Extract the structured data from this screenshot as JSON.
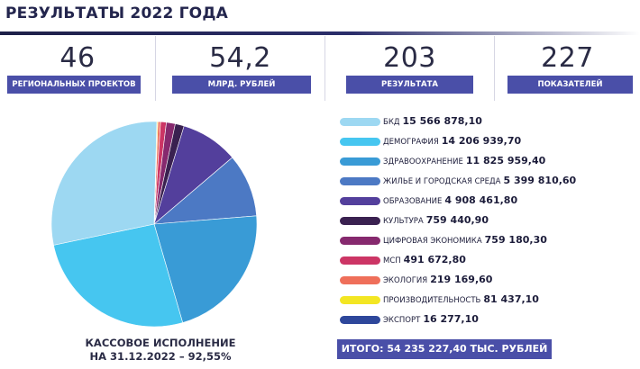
{
  "header": {
    "title": "РЕЗУЛЬТАТЫ 2022 ГОДА"
  },
  "stats": [
    {
      "value": "46",
      "label": "РЕГИОНАЛЬНЫХ ПРОЕКТОВ"
    },
    {
      "value": "54,2",
      "label": "МЛРД. РУБЛЕЙ"
    },
    {
      "value": "203",
      "label": "РЕЗУЛЬТАТА"
    },
    {
      "value": "227",
      "label": "ПОКАЗАТЕЛЕЙ"
    }
  ],
  "chart_data": {
    "type": "pie",
    "slices": [
      {
        "name": "БКД",
        "label": "15 566 878,10",
        "value": 15566878.1,
        "color": "#9dd8f2"
      },
      {
        "name": "ДЕМОГРАФИЯ",
        "label": "14 206 939,70",
        "value": 14206939.7,
        "color": "#46c6f0"
      },
      {
        "name": "ЗДРАВООХРАНЕНИЕ",
        "label": "11 825 959,40",
        "value": 11825959.4,
        "color": "#399bd6"
      },
      {
        "name": "ЖИЛЬЕ И ГОРОДСКАЯ СРЕДА",
        "label": "5 399 810,60",
        "value": 5399810.6,
        "color": "#4c79c4"
      },
      {
        "name": "ОБРАЗОВАНИЕ",
        "label": "4 908 461,80",
        "value": 4908461.8,
        "color": "#533f9c"
      },
      {
        "name": "КУЛЬТУРА",
        "label": "759 440,90",
        "value": 759440.9,
        "color": "#3a2150"
      },
      {
        "name": "ЦИФРОВАЯ ЭКОНОМИКА",
        "label": "759 180,30",
        "value": 759180.3,
        "color": "#86296e"
      },
      {
        "name": "МСП",
        "label": "491 672,80",
        "value": 491672.8,
        "color": "#cc3565"
      },
      {
        "name": "ЭКОЛОГИЯ",
        "label": "219 169,60",
        "value": 219169.6,
        "color": "#ef6f5a"
      },
      {
        "name": "ПРОИЗВОДИТЕЛЬНОСТЬ",
        "label": "81 437,10",
        "value": 81437.1,
        "color": "#f3e623"
      },
      {
        "name": "ЭКСПОРТ",
        "label": "16 277,10",
        "value": 16277.1,
        "color": "#2e479b"
      }
    ],
    "caption_line1": "КАССОВОЕ ИСПОЛНЕНИЕ",
    "caption_line2": "НА 31.12.2022 – 92,55%",
    "total": "ИТОГО: 54 235 227,40  ТЫС. РУБЛЕЙ"
  }
}
